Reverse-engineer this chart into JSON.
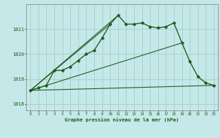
{
  "title": "Graphe pression niveau de la mer (hPa)",
  "background_color": "#c5e8e8",
  "grid_color": "#a8d0d0",
  "line_color": "#1a5c1a",
  "xlim": [
    -0.5,
    23.5
  ],
  "ylim": [
    1017.75,
    1022.0
  ],
  "yticks": [
    1018,
    1019,
    1020,
    1021
  ],
  "xticks": [
    0,
    1,
    2,
    3,
    4,
    5,
    6,
    7,
    8,
    9,
    10,
    11,
    12,
    13,
    14,
    15,
    16,
    17,
    18,
    19,
    20,
    21,
    22,
    23
  ],
  "main_x": [
    0,
    1,
    2,
    3,
    4,
    5,
    6,
    7,
    8,
    9,
    10,
    11,
    12,
    13,
    14,
    15,
    16,
    17,
    18,
    19,
    20,
    21,
    22,
    23
  ],
  "main_y": [
    1018.55,
    1018.65,
    1018.75,
    1019.35,
    1019.35,
    1019.5,
    1019.75,
    1020.0,
    1020.15,
    1020.65,
    1021.2,
    1021.55,
    1021.2,
    1021.2,
    1021.25,
    1021.1,
    1021.05,
    1021.1,
    1021.25,
    1020.45,
    1019.7,
    1019.1,
    1018.85,
    1018.75
  ],
  "straight_lines": [
    {
      "x": [
        0,
        23
      ],
      "y": [
        1018.55,
        1018.75
      ]
    },
    {
      "x": [
        0,
        19
      ],
      "y": [
        1018.55,
        1020.45
      ]
    },
    {
      "x": [
        0,
        10
      ],
      "y": [
        1018.55,
        1021.2
      ]
    },
    {
      "x": [
        0,
        11
      ],
      "y": [
        1018.55,
        1021.55
      ]
    }
  ]
}
